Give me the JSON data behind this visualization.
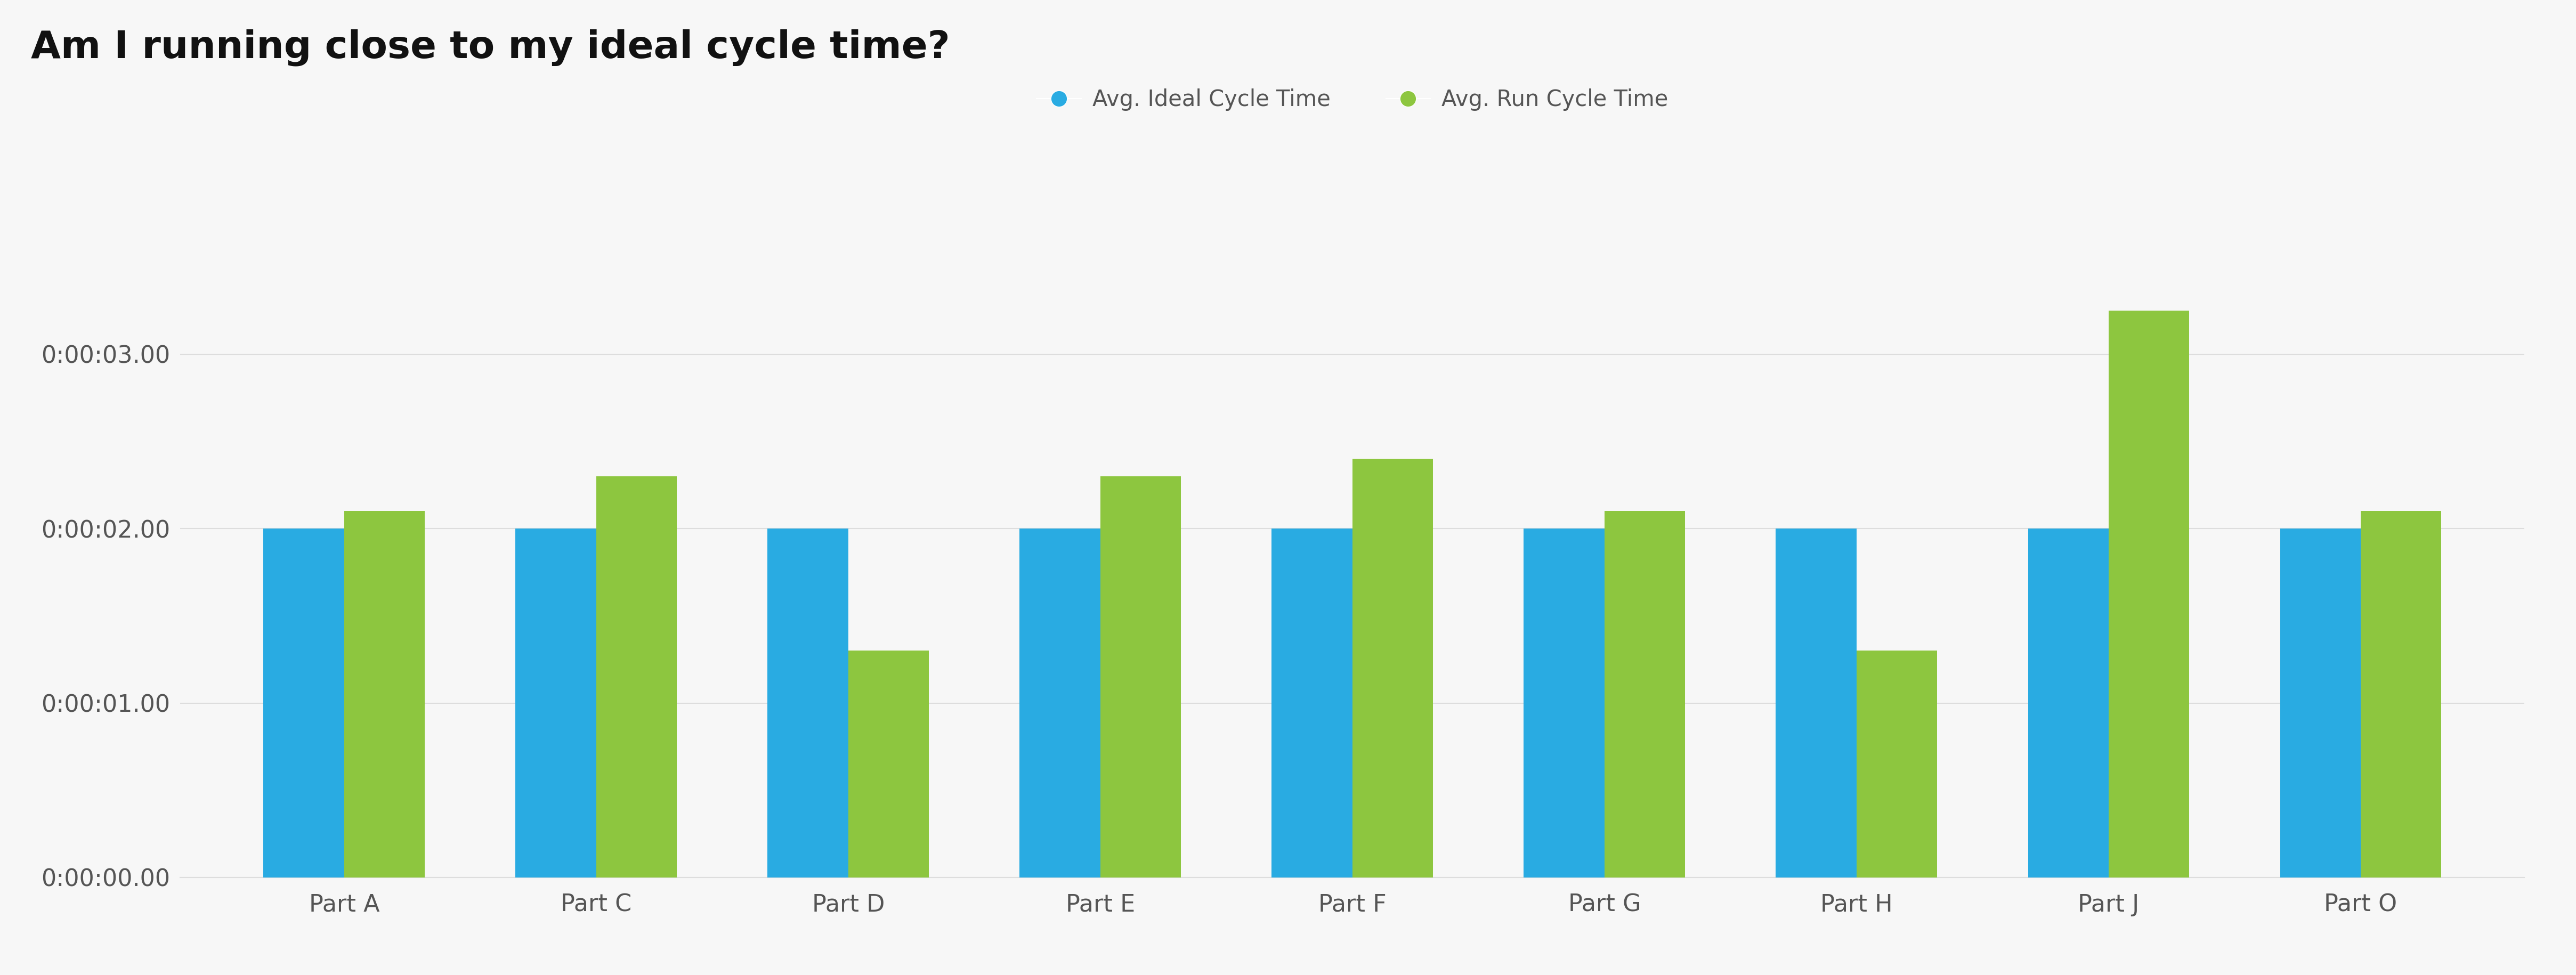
{
  "title": "Am I running close to my ideal cycle time?",
  "categories": [
    "Part A",
    "Part C",
    "Part D",
    "Part E",
    "Part F",
    "Part G",
    "Part H",
    "Part J",
    "Part O"
  ],
  "ideal_values": [
    2.0,
    2.0,
    2.0,
    2.0,
    2.0,
    2.0,
    2.0,
    2.0,
    2.0
  ],
  "run_values": [
    2.1,
    2.3,
    1.3,
    2.3,
    2.4,
    2.1,
    1.3,
    3.25,
    2.1
  ],
  "ideal_color": "#29ABE2",
  "run_color": "#8DC63F",
  "background_color": "#F7F7F7",
  "grid_color": "#DDDDDD",
  "title_fontsize": 52,
  "tick_fontsize": 32,
  "legend_fontsize": 30,
  "bar_width": 0.32,
  "ylim": [
    0,
    3.8
  ],
  "ytick_values": [
    0,
    1,
    2,
    3
  ],
  "ytick_labels": [
    "0:00:00.00",
    "0:00:01.00",
    "0:00:02.00",
    "0:00:03.00"
  ],
  "legend_label_ideal": "Avg. Ideal Cycle Time",
  "legend_label_run": "Avg. Run Cycle Time"
}
